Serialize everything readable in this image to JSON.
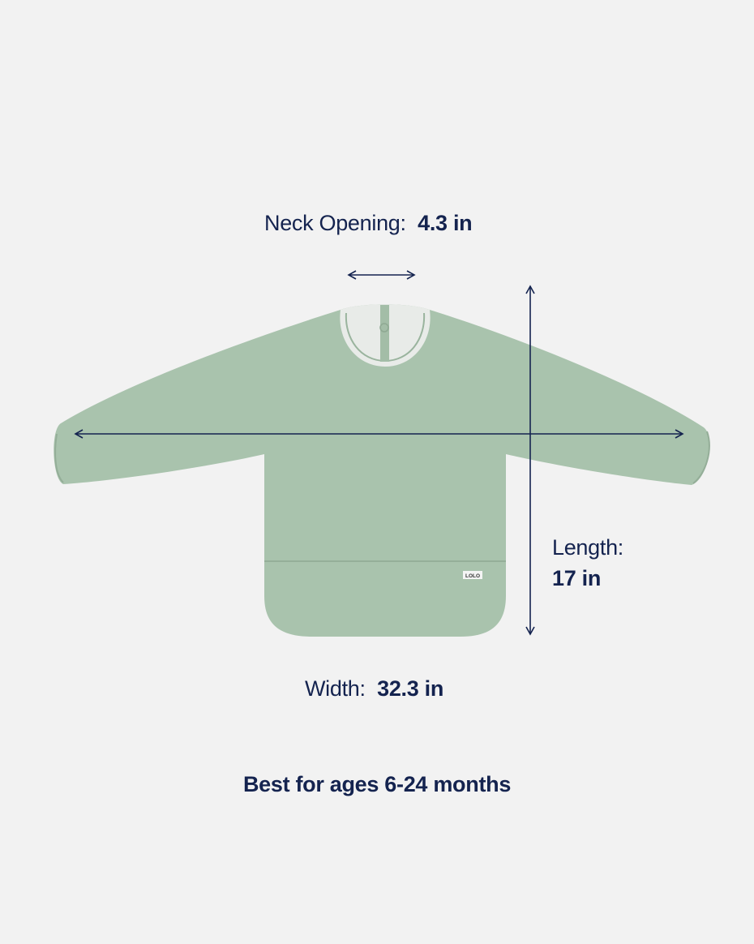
{
  "neck": {
    "label": "Neck Opening:",
    "value": "4.3 in"
  },
  "length": {
    "label": "Length:",
    "value": "17 in"
  },
  "width": {
    "label": "Width:",
    "value": "32.3 in"
  },
  "age_note": "Best for ages 6-24 months",
  "product": {
    "brand_tag": "LOLO",
    "color": "#a9c3ad"
  },
  "colors": {
    "background": "#f2f2f2",
    "annotation": "#14234f"
  }
}
